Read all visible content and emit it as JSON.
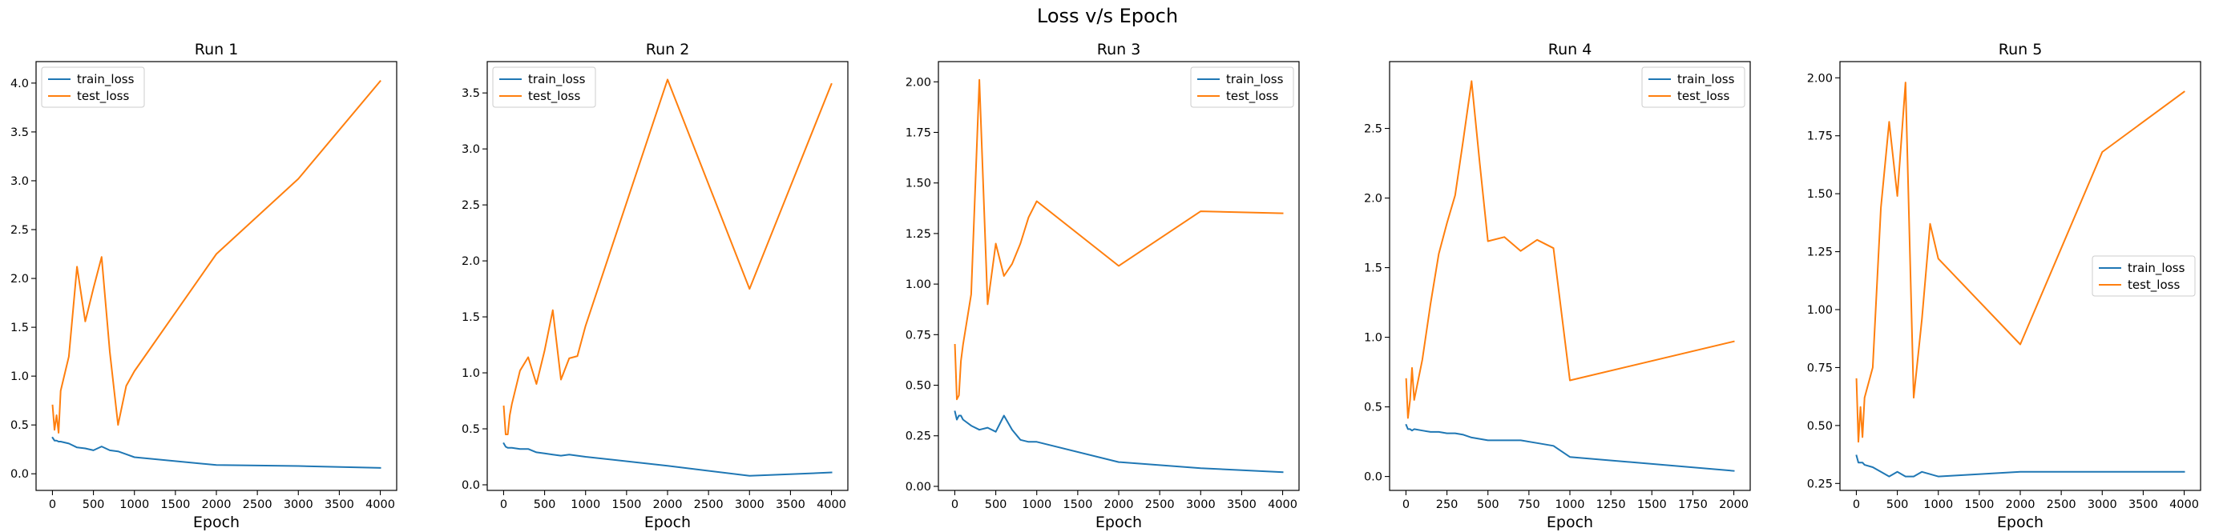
{
  "figure": {
    "title": "Loss v/s Epoch"
  },
  "colors": {
    "train_loss": "#1f77b4",
    "test_loss": "#ff7f0e"
  },
  "chart_data": [
    {
      "type": "line",
      "title": "Run 1",
      "xlabel": "Epoch",
      "ylabel": "",
      "xlim": [
        -200,
        4200
      ],
      "ylim": [
        -0.17,
        4.22
      ],
      "xticks": [
        0,
        500,
        1000,
        1500,
        2000,
        2500,
        3000,
        3500,
        4000
      ],
      "yticks": [
        0.0,
        0.5,
        1.0,
        1.5,
        2.0,
        2.5,
        3.0,
        3.5,
        4.0
      ],
      "xtick_labels": [
        "0",
        "500",
        "1000",
        "1500",
        "2000",
        "2500",
        "3000",
        "3500",
        "4000"
      ],
      "ytick_labels": [
        "0.0",
        "0.5",
        "1.0",
        "1.5",
        "2.0",
        "2.5",
        "3.0",
        "3.5",
        "4.0"
      ],
      "legend": "upper left",
      "series": [
        {
          "name": "train_loss",
          "x": [
            1,
            25,
            50,
            75,
            100,
            200,
            300,
            400,
            500,
            600,
            700,
            800,
            900,
            1000,
            2000,
            3000,
            4000
          ],
          "y": [
            0.37,
            0.34,
            0.34,
            0.33,
            0.33,
            0.31,
            0.27,
            0.26,
            0.24,
            0.28,
            0.24,
            0.23,
            0.2,
            0.17,
            0.09,
            0.08,
            0.06
          ]
        },
        {
          "name": "test_loss",
          "x": [
            1,
            25,
            50,
            75,
            100,
            200,
            300,
            400,
            500,
            600,
            700,
            800,
            900,
            1000,
            2000,
            3000,
            4000
          ],
          "y": [
            0.7,
            0.45,
            0.6,
            0.42,
            0.85,
            1.2,
            2.12,
            1.56,
            1.9,
            2.22,
            1.25,
            0.5,
            0.9,
            1.05,
            2.25,
            3.02,
            4.02
          ]
        }
      ]
    },
    {
      "type": "line",
      "title": "Run 2",
      "xlabel": "Epoch",
      "ylabel": "",
      "xlim": [
        -200,
        4200
      ],
      "ylim": [
        -0.05,
        3.78
      ],
      "xticks": [
        0,
        500,
        1000,
        1500,
        2000,
        2500,
        3000,
        3500,
        4000
      ],
      "yticks": [
        0.0,
        0.5,
        1.0,
        1.5,
        2.0,
        2.5,
        3.0,
        3.5
      ],
      "xtick_labels": [
        "0",
        "500",
        "1000",
        "1500",
        "2000",
        "2500",
        "3000",
        "3500",
        "4000"
      ],
      "ytick_labels": [
        "0.0",
        "0.5",
        "1.0",
        "1.5",
        "2.0",
        "2.5",
        "3.0",
        "3.5"
      ],
      "legend": "upper left",
      "series": [
        {
          "name": "train_loss",
          "x": [
            1,
            25,
            50,
            75,
            100,
            200,
            300,
            400,
            500,
            600,
            700,
            800,
            900,
            1000,
            2000,
            3000,
            4000
          ],
          "y": [
            0.37,
            0.34,
            0.33,
            0.33,
            0.33,
            0.32,
            0.32,
            0.29,
            0.28,
            0.27,
            0.26,
            0.27,
            0.26,
            0.25,
            0.17,
            0.08,
            0.11
          ]
        },
        {
          "name": "test_loss",
          "x": [
            1,
            25,
            50,
            75,
            100,
            200,
            300,
            400,
            500,
            600,
            700,
            800,
            900,
            1000,
            2000,
            3000,
            4000
          ],
          "y": [
            0.7,
            0.45,
            0.45,
            0.62,
            0.72,
            1.02,
            1.14,
            0.9,
            1.2,
            1.56,
            0.94,
            1.13,
            1.15,
            1.42,
            3.62,
            1.75,
            3.58
          ]
        }
      ]
    },
    {
      "type": "line",
      "title": "Run 3",
      "xlabel": "Epoch",
      "ylabel": "",
      "xlim": [
        -200,
        4200
      ],
      "ylim": [
        -0.02,
        2.1
      ],
      "xticks": [
        0,
        500,
        1000,
        1500,
        2000,
        2500,
        3000,
        3500,
        4000
      ],
      "yticks": [
        0.0,
        0.25,
        0.5,
        0.75,
        1.0,
        1.25,
        1.5,
        1.75,
        2.0
      ],
      "xtick_labels": [
        "0",
        "500",
        "1000",
        "1500",
        "2000",
        "2500",
        "3000",
        "3500",
        "4000"
      ],
      "ytick_labels": [
        "0.00",
        "0.25",
        "0.50",
        "0.75",
        "1.00",
        "1.25",
        "1.50",
        "1.75",
        "2.00"
      ],
      "legend": "upper right",
      "series": [
        {
          "name": "train_loss",
          "x": [
            1,
            25,
            50,
            75,
            100,
            200,
            300,
            400,
            500,
            600,
            700,
            800,
            900,
            1000,
            2000,
            3000,
            4000
          ],
          "y": [
            0.37,
            0.33,
            0.35,
            0.35,
            0.33,
            0.3,
            0.28,
            0.29,
            0.27,
            0.35,
            0.28,
            0.23,
            0.22,
            0.22,
            0.12,
            0.09,
            0.07
          ]
        },
        {
          "name": "test_loss",
          "x": [
            1,
            25,
            50,
            75,
            100,
            200,
            300,
            400,
            500,
            600,
            700,
            800,
            900,
            1000,
            2000,
            3000,
            4000
          ],
          "y": [
            0.7,
            0.43,
            0.45,
            0.62,
            0.7,
            0.95,
            2.01,
            0.9,
            1.2,
            1.04,
            1.1,
            1.2,
            1.33,
            1.41,
            1.09,
            1.36,
            1.35
          ]
        }
      ]
    },
    {
      "type": "line",
      "title": "Run 4",
      "xlabel": "Epoch",
      "ylabel": "",
      "xlim": [
        -100,
        2100
      ],
      "ylim": [
        -0.1,
        2.98
      ],
      "xticks": [
        0,
        250,
        500,
        750,
        1000,
        1250,
        1500,
        1750,
        2000
      ],
      "yticks": [
        0.0,
        0.5,
        1.0,
        1.5,
        2.0,
        2.5
      ],
      "xtick_labels": [
        "0",
        "250",
        "500",
        "750",
        "1000",
        "1250",
        "1500",
        "1750",
        "2000"
      ],
      "ytick_labels": [
        "0.0",
        "0.5",
        "1.0",
        "1.5",
        "2.0",
        "2.5"
      ],
      "legend": "upper right",
      "series": [
        {
          "name": "train_loss",
          "x": [
            1,
            12,
            25,
            37,
            50,
            100,
            150,
            200,
            250,
            300,
            350,
            400,
            450,
            500,
            600,
            700,
            800,
            900,
            1000,
            2000
          ],
          "y": [
            0.37,
            0.34,
            0.34,
            0.33,
            0.34,
            0.33,
            0.32,
            0.32,
            0.31,
            0.31,
            0.3,
            0.28,
            0.27,
            0.26,
            0.26,
            0.26,
            0.24,
            0.22,
            0.14,
            0.04
          ]
        },
        {
          "name": "test_loss",
          "x": [
            1,
            12,
            25,
            37,
            50,
            100,
            150,
            200,
            250,
            300,
            350,
            400,
            450,
            500,
            600,
            700,
            800,
            900,
            1000,
            2000
          ],
          "y": [
            0.7,
            0.42,
            0.55,
            0.78,
            0.55,
            0.84,
            1.24,
            1.6,
            1.82,
            2.02,
            2.42,
            2.84,
            2.25,
            1.69,
            1.72,
            1.62,
            1.7,
            1.64,
            0.69,
            0.97
          ]
        }
      ]
    },
    {
      "type": "line",
      "title": "Run 5",
      "xlabel": "Epoch",
      "ylabel": "",
      "xlim": [
        -200,
        4200
      ],
      "ylim": [
        0.22,
        2.07
      ],
      "xticks": [
        0,
        500,
        1000,
        1500,
        2000,
        2500,
        3000,
        3500,
        4000
      ],
      "yticks": [
        0.25,
        0.5,
        0.75,
        1.0,
        1.25,
        1.5,
        1.75,
        2.0
      ],
      "xtick_labels": [
        "0",
        "500",
        "1000",
        "1500",
        "2000",
        "2500",
        "3000",
        "3500",
        "4000"
      ],
      "ytick_labels": [
        "0.25",
        "0.50",
        "0.75",
        "1.00",
        "1.25",
        "1.50",
        "1.75",
        "2.00"
      ],
      "legend": "center right",
      "series": [
        {
          "name": "train_loss",
          "x": [
            1,
            25,
            50,
            75,
            100,
            200,
            300,
            400,
            500,
            600,
            700,
            800,
            900,
            1000,
            2000,
            3000,
            4000
          ],
          "y": [
            0.37,
            0.34,
            0.34,
            0.34,
            0.33,
            0.32,
            0.3,
            0.28,
            0.3,
            0.28,
            0.28,
            0.3,
            0.29,
            0.28,
            0.3,
            0.3,
            0.3
          ]
        },
        {
          "name": "test_loss",
          "x": [
            1,
            25,
            50,
            75,
            100,
            200,
            300,
            400,
            500,
            600,
            700,
            800,
            900,
            1000,
            2000,
            3000,
            4000
          ],
          "y": [
            0.7,
            0.43,
            0.58,
            0.45,
            0.62,
            0.75,
            1.44,
            1.81,
            1.49,
            1.98,
            0.62,
            0.96,
            1.37,
            1.22,
            0.85,
            1.68,
            1.94
          ]
        }
      ]
    }
  ]
}
